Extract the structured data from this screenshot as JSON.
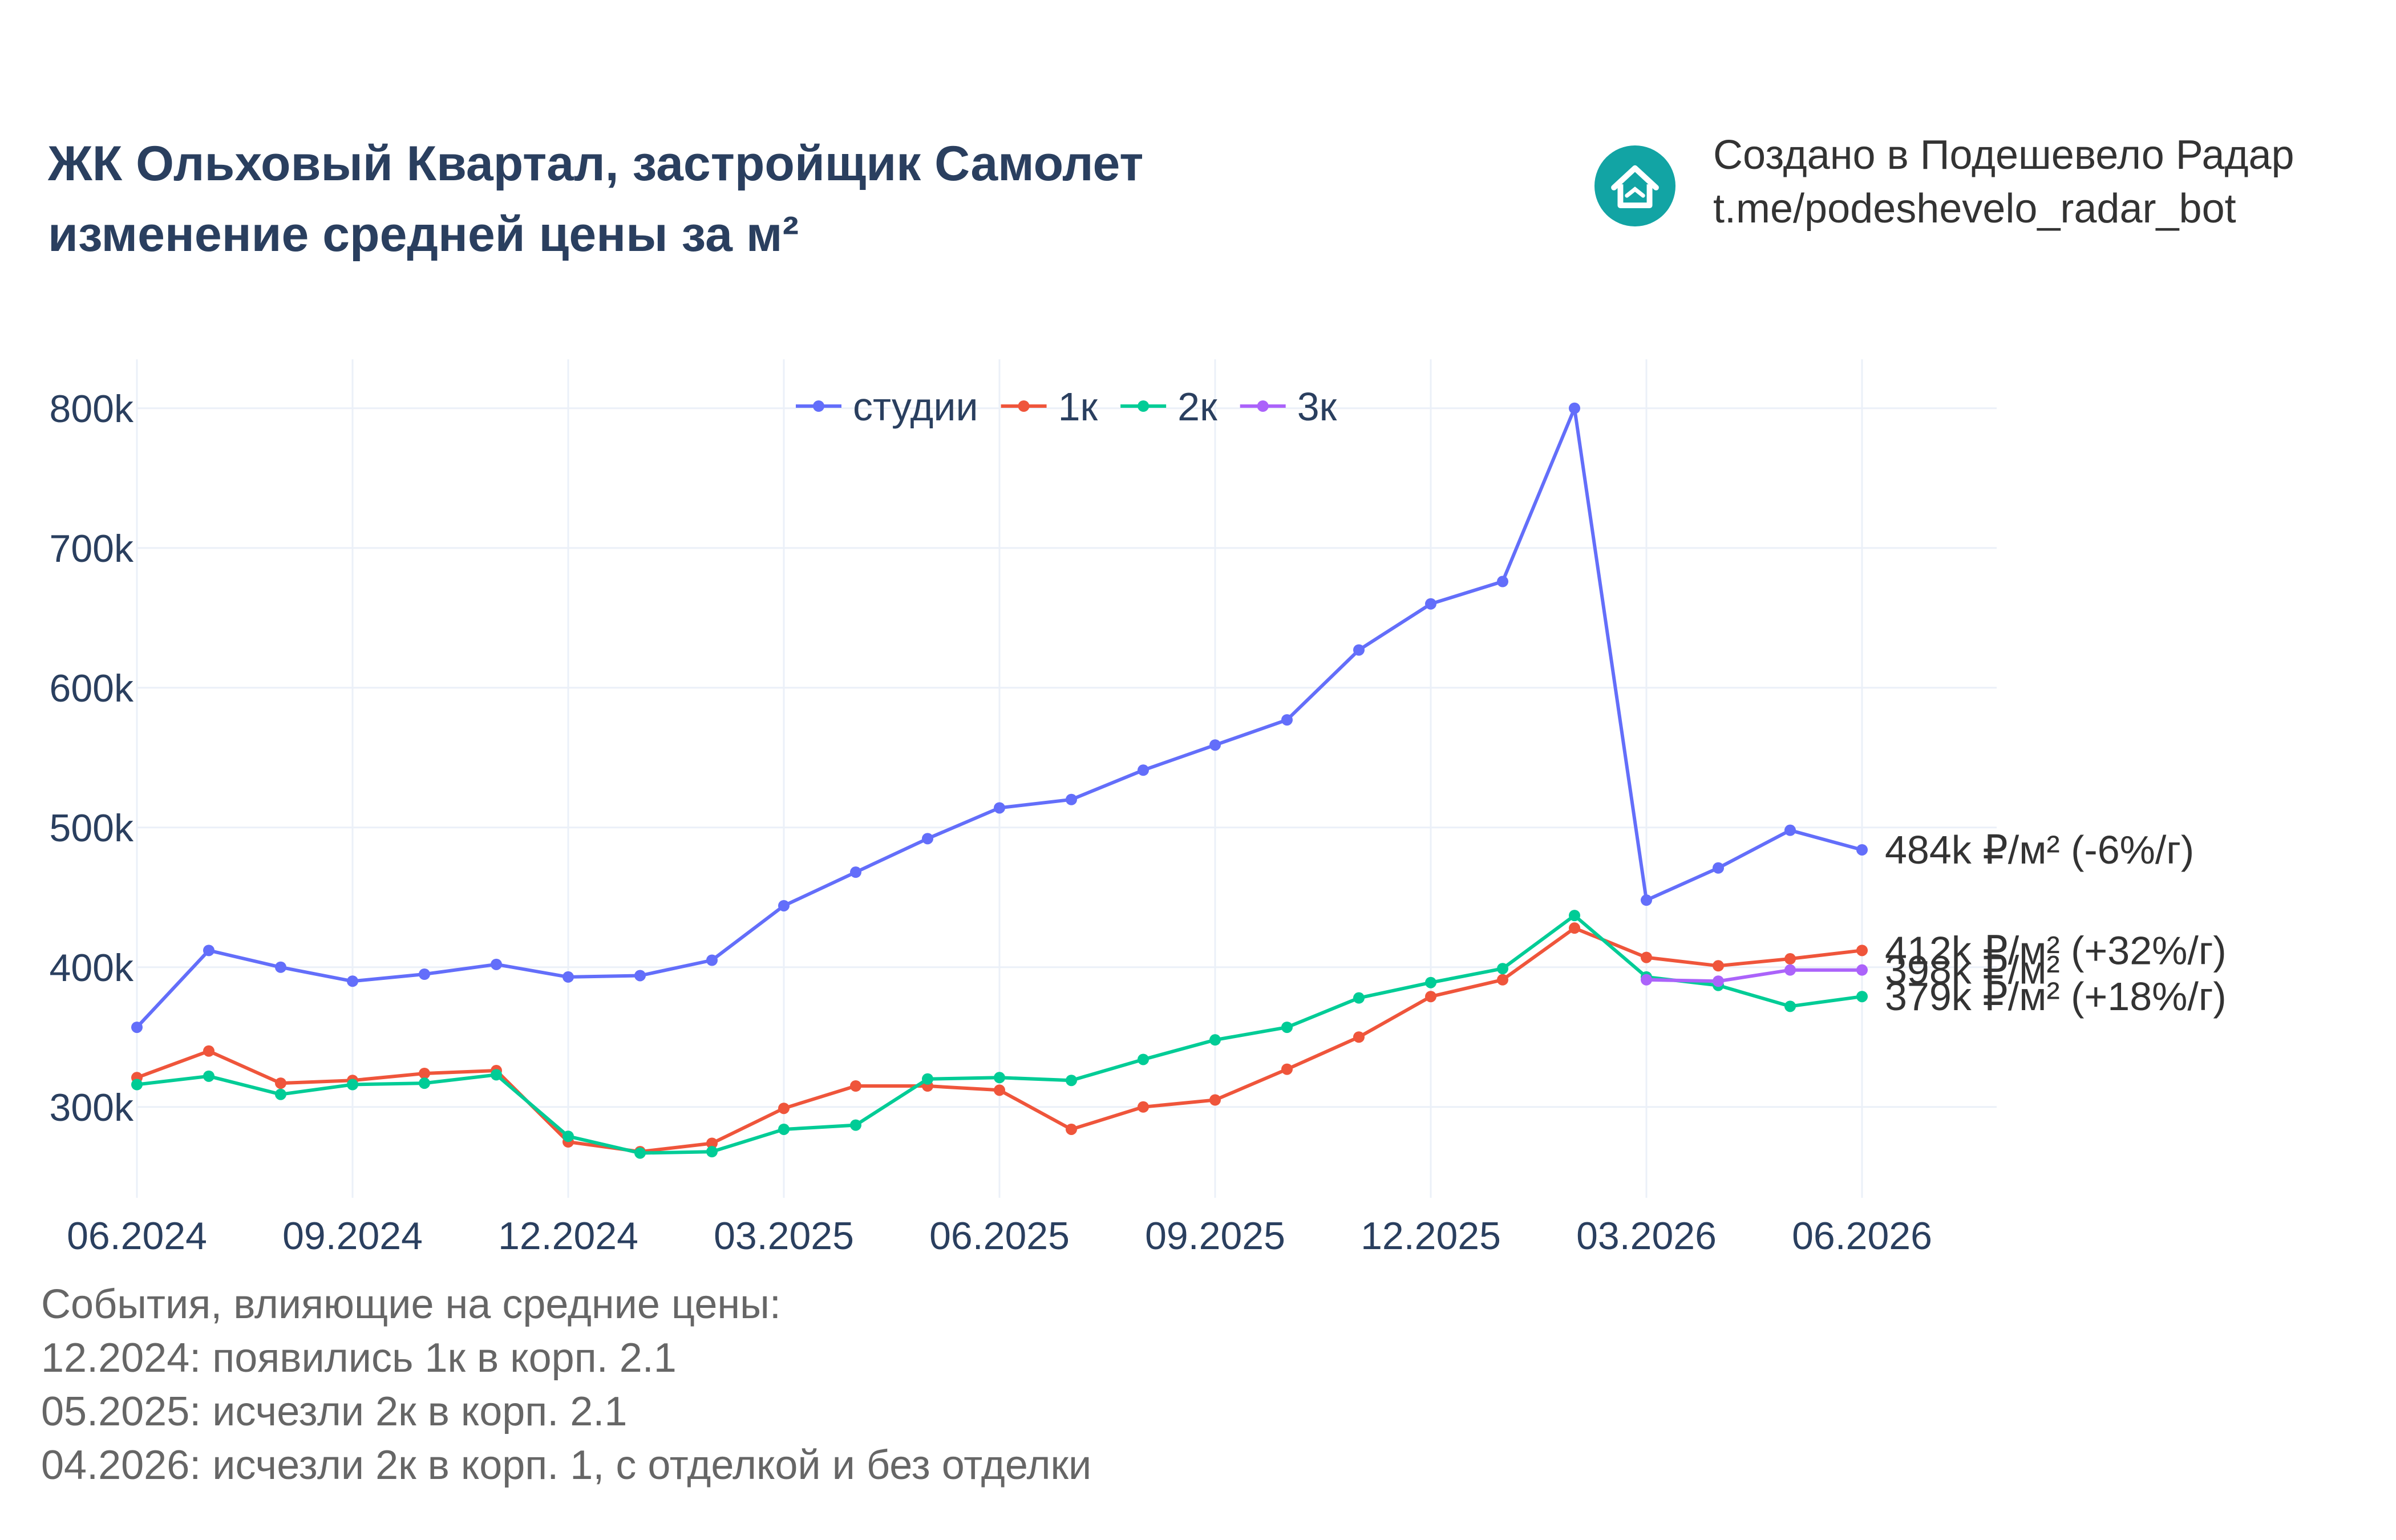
{
  "header": {
    "title_line1": "ЖК Ольховый Квартал, застройщик Самолет",
    "title_line2": "изменение средней цены за м²"
  },
  "brand": {
    "line1": "Создано в Подешевело Радар",
    "line2": "t.me/podeshevelo_radar_bot",
    "logo_icon": "house-icon",
    "logo_color": "#12a4a4"
  },
  "notes": {
    "heading": "События, влияющие на средние цены:",
    "items": [
      "12.2024: появились 1к в корп. 2.1",
      "05.2025: исчезли 2к в корп. 2.1",
      "04.2026: исчезли 2к в корп. 1, с отделкой и без отделки"
    ]
  },
  "chart_data": {
    "type": "line",
    "x": [
      "06.2024",
      "07.2024",
      "08.2024",
      "09.2024",
      "10.2024",
      "11.2024",
      "12.2024",
      "01.2025",
      "02.2025",
      "03.2025",
      "04.2025",
      "05.2025",
      "06.2025",
      "07.2025",
      "08.2025",
      "09.2025",
      "10.2025",
      "11.2025",
      "12.2025",
      "01.2026",
      "02.2026",
      "03.2026",
      "04.2026",
      "05.2026",
      "06.2026"
    ],
    "x_ticks": [
      "06.2024",
      "09.2024",
      "12.2024",
      "03.2025",
      "06.2025",
      "09.2025",
      "12.2025",
      "03.2026",
      "06.2026"
    ],
    "y_ticks": [
      300000,
      400000,
      500000,
      600000,
      700000,
      800000
    ],
    "y_tick_labels": [
      "300k",
      "400k",
      "500k",
      "600k",
      "700k",
      "800k"
    ],
    "ylim": [
      235000,
      835000
    ],
    "grid": true,
    "legend_position": "top-center",
    "series": [
      {
        "name": "студии",
        "color": "#636efa",
        "values": [
          357000,
          412000,
          400000,
          390000,
          395000,
          402000,
          393000,
          394000,
          405000,
          444000,
          468000,
          492000,
          514000,
          520000,
          541000,
          559000,
          577000,
          627000,
          660000,
          676000,
          800000,
          448000,
          471000,
          498000,
          484000
        ],
        "end_label": "484k ₽/м² (-6%/г)"
      },
      {
        "name": "1к",
        "color": "#ef553b",
        "values": [
          321000,
          340000,
          317000,
          319000,
          324000,
          326000,
          275000,
          268000,
          274000,
          299000,
          315000,
          315000,
          312000,
          284000,
          300000,
          305000,
          327000,
          350000,
          379000,
          391000,
          428000,
          407000,
          401000,
          406000,
          412000
        ],
        "end_label": "412k ₽/м² (+32%/г)"
      },
      {
        "name": "2к",
        "color": "#00cc96",
        "values": [
          316000,
          322000,
          309000,
          316000,
          317000,
          323000,
          279000,
          267000,
          268000,
          284000,
          287000,
          320000,
          321000,
          319000,
          334000,
          348000,
          357000,
          378000,
          389000,
          399000,
          437000,
          393000,
          387000,
          372000,
          379000
        ],
        "end_label": "379k ₽/м² (+18%/г)"
      },
      {
        "name": "3к",
        "color": "#ab63fa",
        "values": [
          null,
          null,
          null,
          null,
          null,
          null,
          null,
          null,
          null,
          null,
          null,
          null,
          null,
          null,
          null,
          null,
          null,
          null,
          null,
          null,
          null,
          391000,
          390000,
          398000,
          398000
        ],
        "end_label": "398k ₽/м²"
      }
    ]
  }
}
